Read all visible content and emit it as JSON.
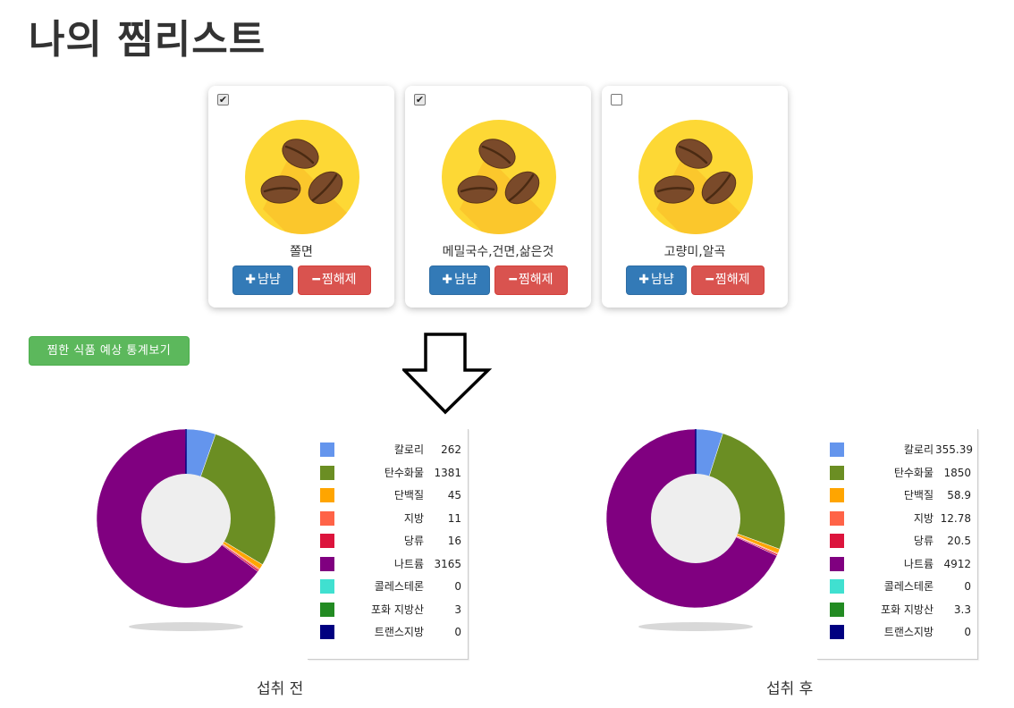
{
  "page": {
    "title": "나의 찜리스트"
  },
  "cards": [
    {
      "checked": true,
      "check_mark": "✔",
      "name": "쫄면",
      "image_icon": "coffee-beans-icon",
      "eat_label": "냠냠",
      "eat_icon": "plus-icon",
      "unlike_label": "찜해제",
      "unlike_icon": "minus-icon"
    },
    {
      "checked": true,
      "check_mark": "✔",
      "name": "메밀국수,건면,삶은것",
      "image_icon": "coffee-beans-icon",
      "eat_label": "냠냠",
      "eat_icon": "plus-icon",
      "unlike_label": "찜해제",
      "unlike_icon": "minus-icon"
    },
    {
      "checked": false,
      "check_mark": "",
      "name": "고량미,알곡",
      "image_icon": "coffee-beans-icon",
      "eat_label": "냠냠",
      "eat_icon": "plus-icon",
      "unlike_label": "찜해제",
      "unlike_icon": "minus-icon"
    }
  ],
  "stats_button": {
    "label": "찜한 식품 예상 통계보기"
  },
  "colors": {
    "card_image_circle": "#fdd835",
    "bean": "#7a4a2a",
    "eat_button": "#337ab7",
    "unlike_button": "#d9534f",
    "stats_button": "#5cb85c",
    "donut_hole": "#eeeeee"
  },
  "chart_data": [
    {
      "type": "pie",
      "title": "섭취 전",
      "donut": true,
      "series": [
        {
          "name": "칼로리",
          "value": 262,
          "value_label": "262",
          "color": "#6495ed"
        },
        {
          "name": "탄수화물",
          "value": 1381,
          "value_label": "1381",
          "color": "#6b8e23"
        },
        {
          "name": "단백질",
          "value": 45,
          "value_label": "45",
          "color": "#ffa500"
        },
        {
          "name": "지방",
          "value": 11,
          "value_label": "11",
          "color": "#ff6347"
        },
        {
          "name": "당류",
          "value": 16,
          "value_label": "16",
          "color": "#dc143c"
        },
        {
          "name": "나트륨",
          "value": 3165,
          "value_label": "3165",
          "color": "#800080"
        },
        {
          "name": "콜레스테론",
          "value": 0,
          "value_label": "0",
          "color": "#40e0d0"
        },
        {
          "name": "포화 지방산",
          "value": 3,
          "value_label": "3",
          "color": "#228b22"
        },
        {
          "name": "트랜스지방",
          "value": 0,
          "value_label": "0",
          "color": "#000080"
        }
      ],
      "legend_position": "right"
    },
    {
      "type": "pie",
      "title": "섭취 후",
      "donut": true,
      "series": [
        {
          "name": "칼로리",
          "value": 355.39,
          "value_label": "355.39",
          "color": "#6495ed"
        },
        {
          "name": "탄수화물",
          "value": 1850,
          "value_label": "1850",
          "color": "#6b8e23"
        },
        {
          "name": "단백질",
          "value": 58.9,
          "value_label": "58.9",
          "color": "#ffa500"
        },
        {
          "name": "지방",
          "value": 12.78,
          "value_label": "12.78",
          "color": "#ff6347"
        },
        {
          "name": "당류",
          "value": 20.5,
          "value_label": "20.5",
          "color": "#dc143c"
        },
        {
          "name": "나트륨",
          "value": 4912,
          "value_label": "4912",
          "color": "#800080"
        },
        {
          "name": "콜레스테론",
          "value": 0,
          "value_label": "0",
          "color": "#40e0d0"
        },
        {
          "name": "포화 지방산",
          "value": 3.3,
          "value_label": "3.3",
          "color": "#228b22"
        },
        {
          "name": "트랜스지방",
          "value": 0,
          "value_label": "0",
          "color": "#000080"
        }
      ],
      "legend_position": "right"
    }
  ]
}
